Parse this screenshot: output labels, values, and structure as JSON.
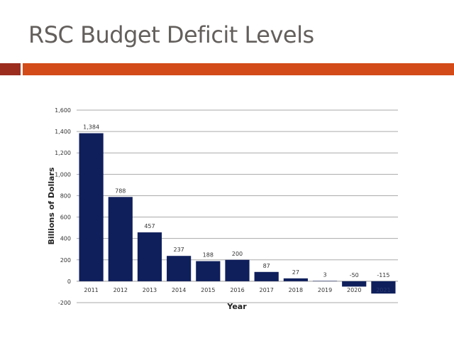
{
  "slide": {
    "title": "RSC Budget Deficit Levels",
    "colors": {
      "title": "#635f5c",
      "accent_dark": "#9b2d1f",
      "accent": "#d24b18",
      "bar": "#0f1f5c"
    }
  },
  "chart_data": {
    "type": "bar",
    "title": "",
    "xlabel": "Year",
    "ylabel": "Billions of Dollars",
    "categories": [
      "2011",
      "2012",
      "2013",
      "2014",
      "2015",
      "2016",
      "2017",
      "2018",
      "2019",
      "2020",
      "2021"
    ],
    "values": [
      1384,
      788,
      457,
      237,
      188,
      200,
      87,
      27,
      3,
      -50,
      -115
    ],
    "data_labels": [
      "1,384",
      "788",
      "457",
      "237",
      "188",
      "200",
      "87",
      "27",
      "3",
      "-50",
      "-115"
    ],
    "ylim": [
      -200,
      1600
    ],
    "yticks": [
      -200,
      0,
      200,
      400,
      600,
      800,
      1000,
      1200,
      1400,
      1600
    ],
    "ytick_labels": [
      "-200",
      "0",
      "200",
      "400",
      "600",
      "800",
      "1,000",
      "1,200",
      "1,400",
      "1,600"
    ],
    "grid": true,
    "legend": "none"
  }
}
